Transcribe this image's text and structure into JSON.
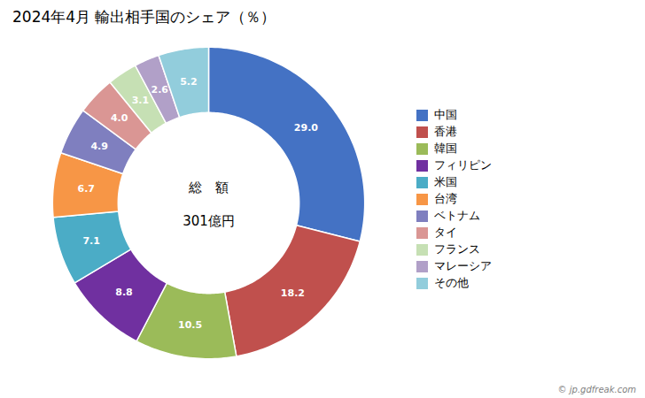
{
  "chart_data": {
    "type": "pie",
    "title": "2024年4月 輸出相手国のシェア（％）",
    "categories": [
      "中国",
      "香港",
      "韓国",
      "フィリピン",
      "米国",
      "台湾",
      "ベトナム",
      "タイ",
      "フランス",
      "マレーシア",
      "その他"
    ],
    "values": [
      29.0,
      18.2,
      10.5,
      8.8,
      7.1,
      6.7,
      4.9,
      4.0,
      3.1,
      2.6,
      5.2
    ],
    "value_labels": [
      "29.0",
      "18.2",
      "10.5",
      "8.8",
      "7.1",
      "6.7",
      "4.9",
      "4.0",
      "3.1",
      "2.6",
      "5.2"
    ],
    "colors": [
      "#4472C4",
      "#C0504D",
      "#9BBB59",
      "#7030A0",
      "#4BACC6",
      "#F79646",
      "#7F7FBF",
      "#DA9694",
      "#C6E0B4",
      "#B1A0C8",
      "#92CDDC"
    ],
    "data_labels": true,
    "legend": "right",
    "annotations": [
      "総　額",
      "301億円"
    ],
    "caption": "© jp.gdfreak.com"
  }
}
